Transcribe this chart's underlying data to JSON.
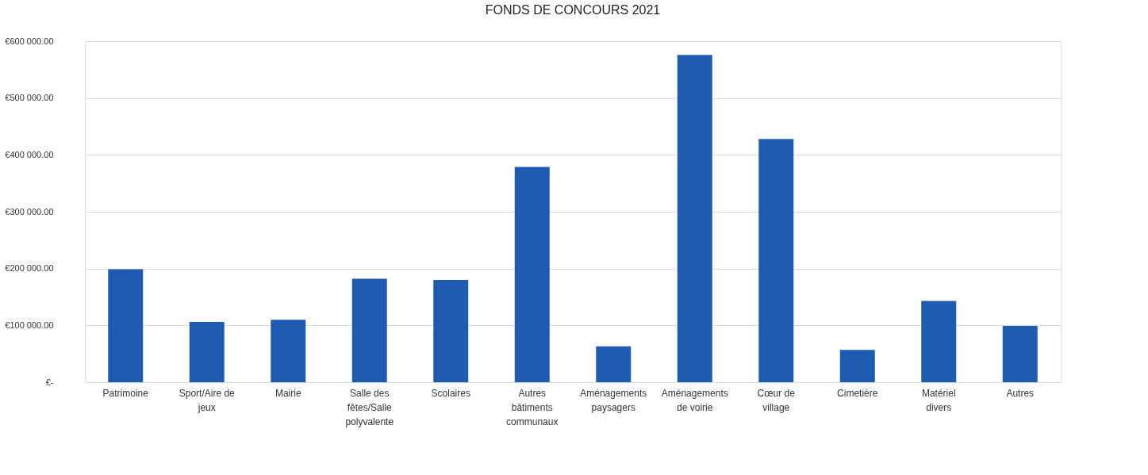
{
  "chart_data": {
    "type": "bar",
    "title": "FONDS DE CONCOURS 2021",
    "categories": [
      "Patrimoine",
      "Sport/Aire de jeux",
      "Mairie",
      "Salle des fêtes/Salle polyvalente",
      "Scolaires",
      "Autres bâtiments communaux",
      "Aménagements paysagers",
      "Aménagements de voirie",
      "Cœur de village",
      "Cimetière",
      "Matériel divers",
      "Autres"
    ],
    "values": [
      199000,
      106000,
      110000,
      182000,
      180000,
      379000,
      63000,
      576000,
      428000,
      57000,
      143000,
      99000
    ],
    "color": "#1f5bb0",
    "ylim": [
      0,
      600000
    ],
    "yticks": [
      {
        "value": 0,
        "label": "€-"
      },
      {
        "value": 100000,
        "label": "€100 000.00"
      },
      {
        "value": 200000,
        "label": "€200 000.00"
      },
      {
        "value": 300000,
        "label": "€300 000.00"
      },
      {
        "value": 400000,
        "label": "€400 000.00"
      },
      {
        "value": 500000,
        "label": "€500 000.00"
      },
      {
        "value": 600000,
        "label": "€600 000.00"
      }
    ],
    "grid": "y"
  }
}
